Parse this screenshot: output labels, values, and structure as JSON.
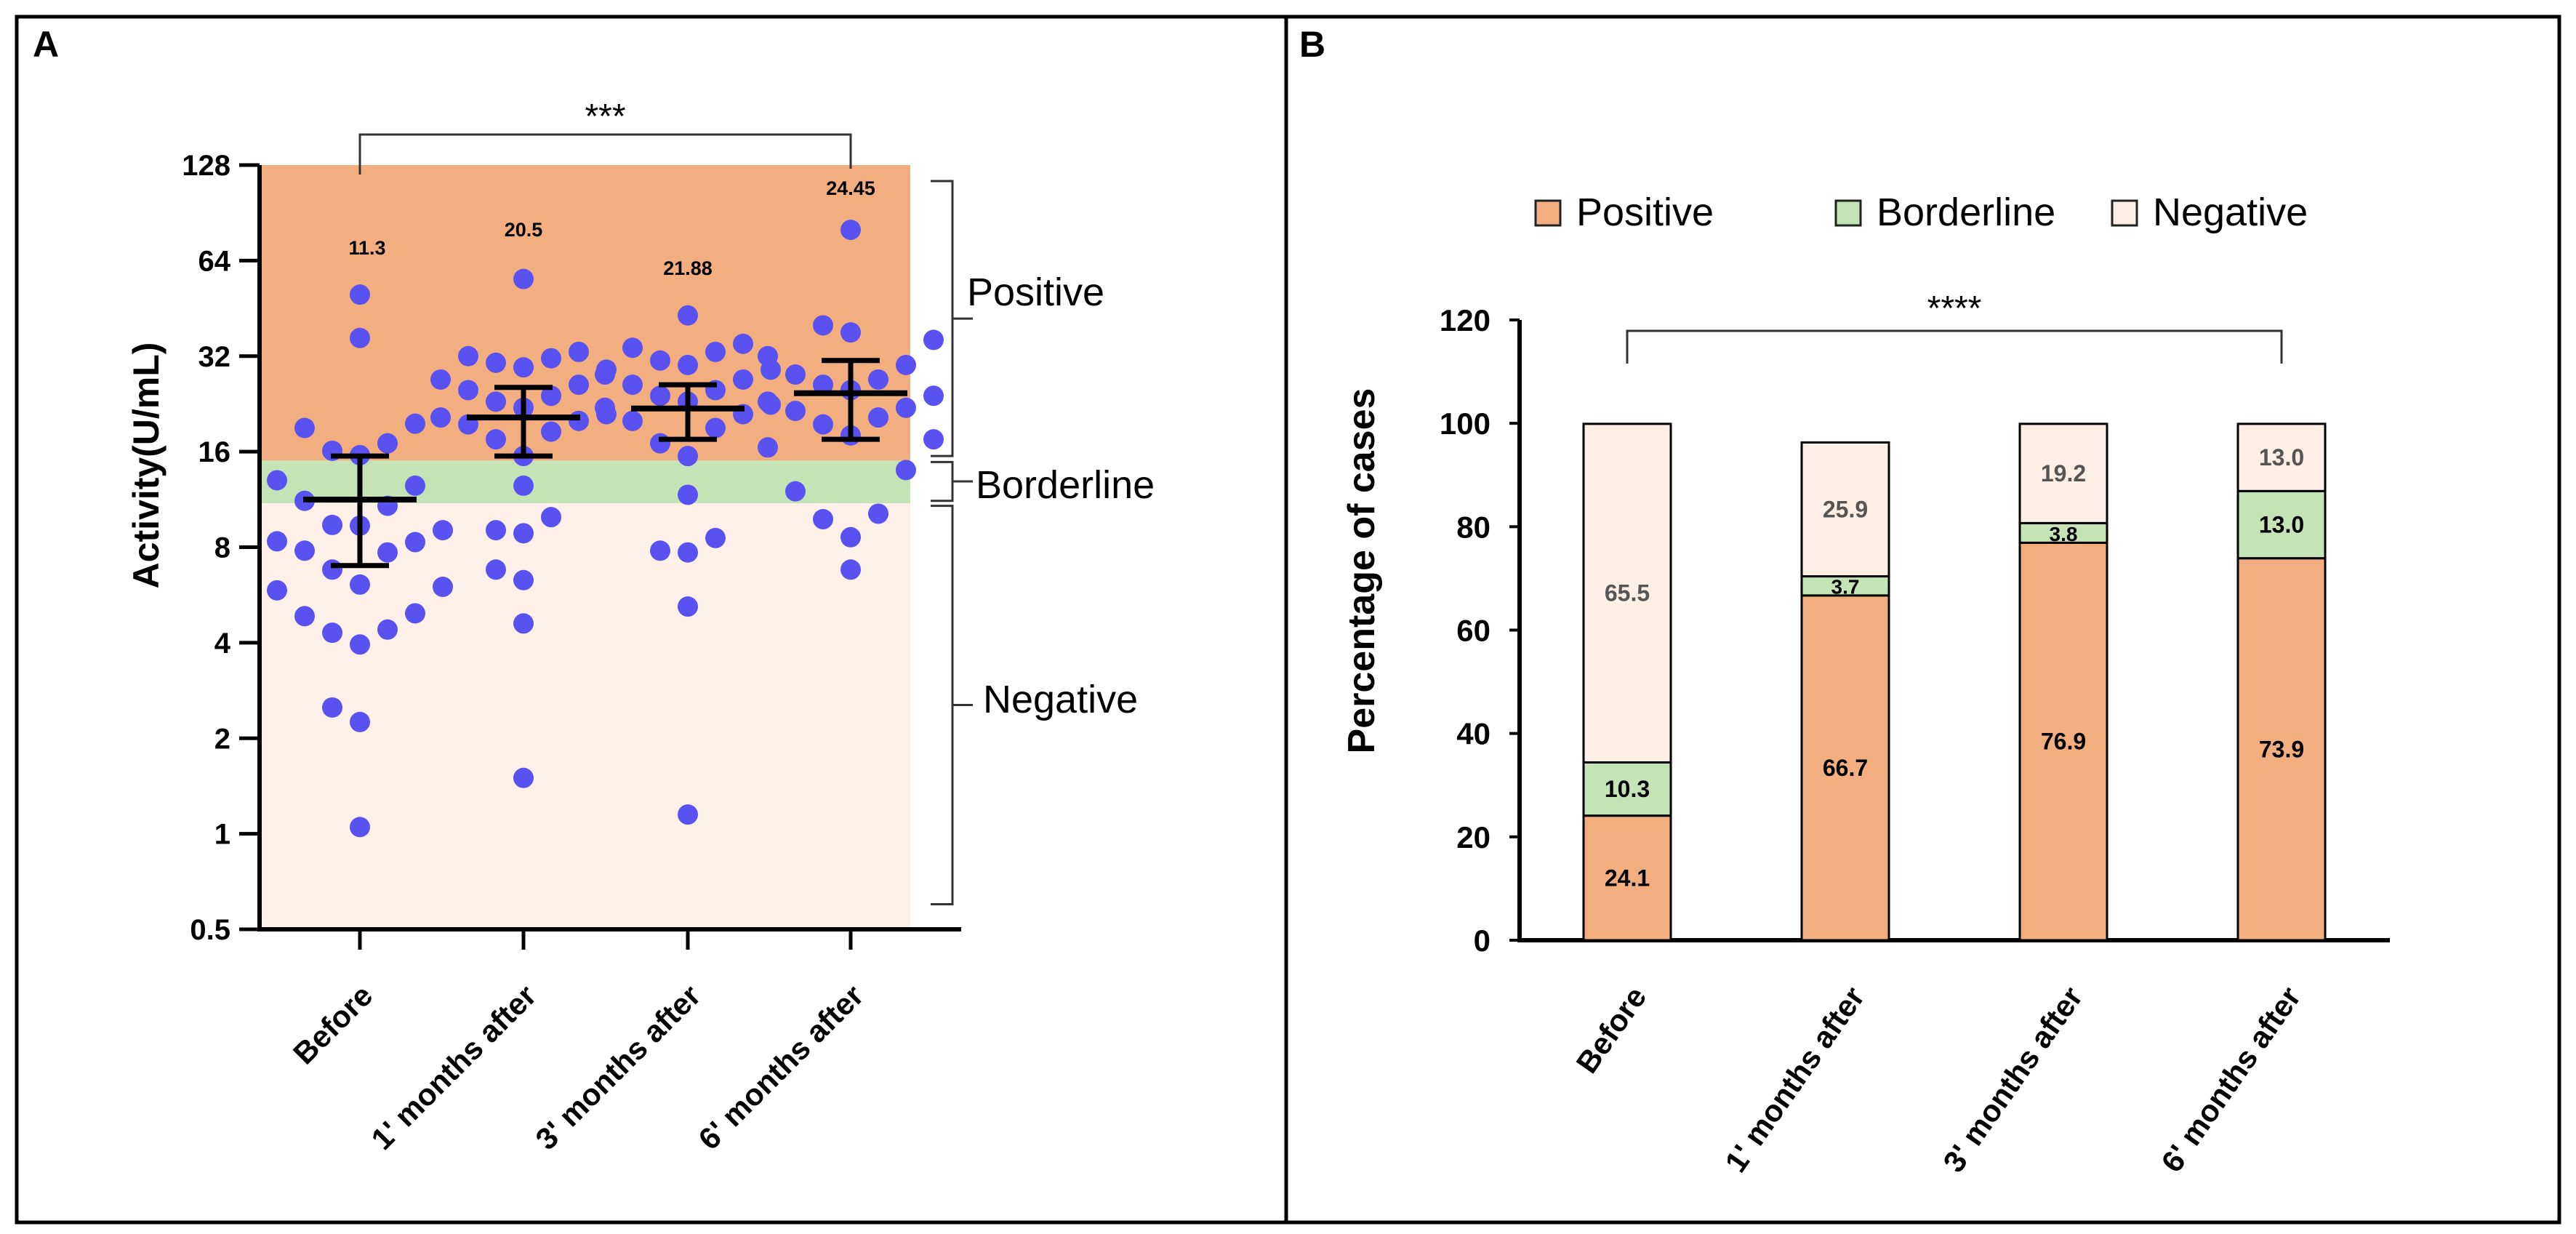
{
  "colors": {
    "positive": "#f2ae7f",
    "borderline": "#c5e4b6",
    "negative": "#fdeee6",
    "positive_bg": "#f2ae7f",
    "borderline_bg": "#c6e3b5",
    "negative_bg": "#fdf0e9",
    "dots": "#5a52f0",
    "axis": "#000000"
  },
  "panel_a": {
    "label": "A",
    "significance": "***",
    "chart_data": {
      "type": "scatter",
      "title": "",
      "xlabel": "",
      "ylabel": "Activity(U/mL)",
      "yscale": "log2",
      "ylim": [
        0.5,
        128
      ],
      "yticks": [
        "128",
        "64",
        "32",
        "16",
        "8",
        "4",
        "2",
        "1",
        "0.5"
      ],
      "categories": [
        "Before",
        "1' months after",
        "3' months after",
        "6' months after"
      ],
      "medians": [
        11.3,
        20.5,
        21.88,
        24.45
      ],
      "median_labels": [
        "11.3",
        "20.5",
        "21.88",
        "24.45"
      ],
      "error_bars": [
        {
          "low": 7.0,
          "high": 15.5
        },
        {
          "low": 15.5,
          "high": 25.5
        },
        {
          "low": 17.5,
          "high": 26.0
        },
        {
          "low": 17.5,
          "high": 31.0
        }
      ],
      "points": [
        [
          1.05,
          2.25,
          2.5,
          3.95,
          4.3,
          4.4,
          4.85,
          4.95,
          5.85,
          6.0,
          6.1,
          6.8,
          7.7,
          7.8,
          8.3,
          8.35,
          9.05,
          9.35,
          9.4,
          10.8,
          11.2,
          12.5,
          13.0,
          15.6,
          16.1,
          17.0,
          19.0,
          19.6,
          36.5,
          50.0
        ],
        [
          1.5,
          4.6,
          6.3,
          6.8,
          8.85,
          9.05,
          9.95,
          12.5,
          15.5,
          17.5,
          18.5,
          19.5,
          20.0,
          20.5,
          21.0,
          22.0,
          23.0,
          24.0,
          25.0,
          26.0,
          27.0,
          29.0,
          29.5,
          30.5,
          31.5,
          32.0,
          33.0,
          56.0
        ],
        [
          1.15,
          5.2,
          7.7,
          7.8,
          8.55,
          11.7,
          15.5,
          17.0,
          19.0,
          20.0,
          21.0,
          22.0,
          22.5,
          23.0,
          24.0,
          25.0,
          26.0,
          27.0,
          28.0,
          29.0,
          30.0,
          31.0,
          33.0,
          34.0,
          35.0,
          43.0
        ],
        [
          6.8,
          8.6,
          9.8,
          10.2,
          12.0,
          14.0,
          16.5,
          17.5,
          18.0,
          19.5,
          20.5,
          21.5,
          22.0,
          23.0,
          24.0,
          25.0,
          26.0,
          27.0,
          28.0,
          30.0,
          32.0,
          36.0,
          38.0,
          40.0,
          80.0
        ]
      ],
      "bands": [
        {
          "name": "Positive",
          "from": 15.0,
          "to": 128
        },
        {
          "name": "Borderline",
          "from": 11.0,
          "to": 15.0
        },
        {
          "name": "Negative",
          "from": 0.5,
          "to": 11.0
        }
      ]
    },
    "band_labels": {
      "positive": "Positive",
      "borderline": "Borderline",
      "negative": "Negative"
    }
  },
  "panel_b": {
    "label": "B",
    "significance": "****",
    "legend": [
      "Positive",
      "Borderline",
      "Negative"
    ],
    "chart_data": {
      "type": "bar",
      "stacked": true,
      "title": "",
      "xlabel": "",
      "ylabel": "Percentage of cases",
      "ylim": [
        0,
        120
      ],
      "yticks": [
        "0",
        "20",
        "40",
        "60",
        "80",
        "100",
        "120"
      ],
      "categories": [
        "Before",
        "1' months after",
        "3' months after",
        "6' months after"
      ],
      "series": [
        {
          "name": "Positive",
          "values": [
            24.1,
            66.7,
            76.9,
            73.9
          ],
          "labels": [
            "24.1",
            "66.7",
            "76.9",
            "73.9"
          ]
        },
        {
          "name": "Borderline",
          "values": [
            10.3,
            3.7,
            3.8,
            13.0
          ],
          "labels": [
            "10.3",
            "3.7",
            "3.8",
            "13.0"
          ]
        },
        {
          "name": "Negative",
          "values": [
            65.5,
            25.9,
            19.2,
            13.0
          ],
          "labels": [
            "65.5",
            "25.9",
            "19.2",
            "13.0"
          ]
        }
      ],
      "legend_position": "top"
    }
  }
}
